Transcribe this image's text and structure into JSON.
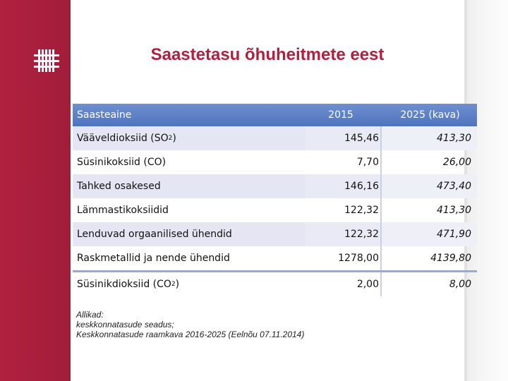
{
  "slide": {
    "title": "Saastetasu õhuheitmete eest"
  },
  "table": {
    "headers": [
      "Saasteaine",
      "2015",
      "2025 (kava)"
    ],
    "rows": [
      {
        "name_main": "Vääveldioksiid (SO",
        "name_sub": "2",
        "name_tail": ")",
        "v2015": "145,46",
        "v2025": "413,30"
      },
      {
        "name_main": "Süsinikoksiid (CO)",
        "name_sub": "",
        "name_tail": "",
        "v2015": "7,70",
        "v2025": "26,00"
      },
      {
        "name_main": "Tahked osakesed",
        "name_sub": "",
        "name_tail": "",
        "v2015": "146,16",
        "v2025": "473,40"
      },
      {
        "name_main": "Lämmastikoksiidid",
        "name_sub": "",
        "name_tail": "",
        "v2015": "122,32",
        "v2025": "413,30"
      },
      {
        "name_main": "Lenduvad orgaanilised ühendid",
        "name_sub": "",
        "name_tail": "",
        "v2015": "122,32",
        "v2025": "471,90"
      },
      {
        "name_main": "Raskmetallid ja nende ühendid",
        "name_sub": "",
        "name_tail": "",
        "v2015": "1278,00",
        "v2025": "4139,80"
      },
      {
        "name_main": "Süsinikdioksiid (CO",
        "name_sub": "2",
        "name_tail": ")",
        "v2015": "2,00",
        "v2025": "8,00"
      }
    ]
  },
  "sources": {
    "line1": "Allikad:",
    "line2": "keskkonnatasude seadus;",
    "line3": "Keskkonnatasude raamkava 2016-2025 (Eelnõu  07.11.2014)"
  },
  "colors": {
    "brand_red": "#b0213f",
    "header_blue": "#4f74bf"
  }
}
